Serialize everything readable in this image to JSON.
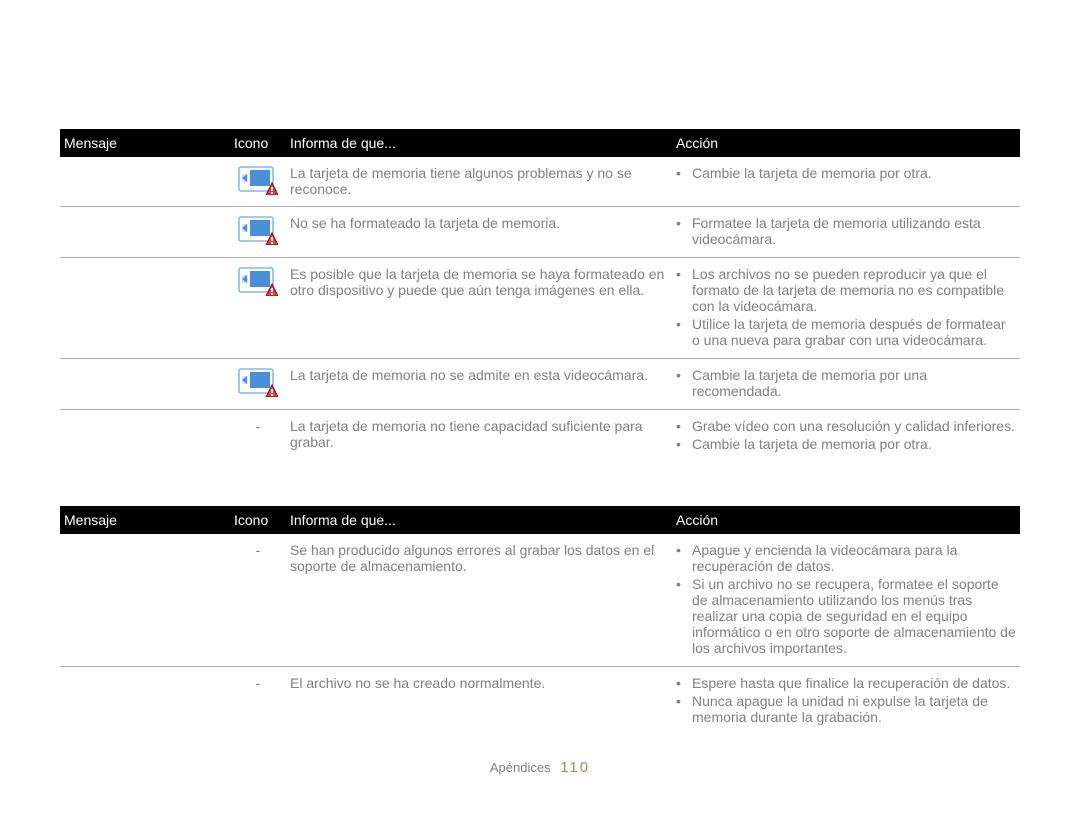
{
  "page_title": "",
  "section1": {
    "label": "",
    "headers": {
      "message": "Mensaje",
      "icon": "Icono",
      "informa": "Informa de que...",
      "action": "Acción"
    },
    "icon_colors": {
      "body": "#4a90d9",
      "screen": "#cfe5ff",
      "triangle_border": "#a00000",
      "triangle_fill": "#e04040",
      "bang": "#ffffff"
    },
    "rows": [
      {
        "msg": "",
        "icon": "card",
        "desc": "La tarjeta de memoria tiene algunos problemas y no se reconoce.",
        "actions": [
          "Cambie la tarjeta de memoria por otra."
        ]
      },
      {
        "msg": "",
        "icon": "card",
        "desc": "No se ha formateado la tarjeta de memoria.",
        "actions": [
          "Formatee la tarjeta de memoria utilizando esta videocámara."
        ]
      },
      {
        "msg": "",
        "icon": "card",
        "desc": "Es posible que la tarjeta de memoria se haya formateado en otro dispositivo y puede que aún tenga imágenes en ella.",
        "actions": [
          "Los archivos no se pueden reproducir ya que el formato de la tarjeta de memoria no es compatible con la videocámara.",
          "Utilice la tarjeta de memoria después de formatear o una nueva para grabar con una videocámara."
        ]
      },
      {
        "msg": "",
        "icon": "card",
        "desc": "La tarjeta de memoria no se admite en esta videocámara.",
        "actions": [
          "Cambie la tarjeta de memoria por una recomendada."
        ]
      },
      {
        "msg": "",
        "icon": "-",
        "desc": "La tarjeta de memoria no tiene capacidad suficiente para grabar.",
        "actions": [
          "Grabe vídeo con una resolución y calidad inferiores.",
          "Cambie la tarjeta de memoria por otra."
        ]
      }
    ]
  },
  "section2": {
    "headers": {
      "message": "Mensaje",
      "icon": "Icono",
      "informa": "Informa de que...",
      "action": "Acción"
    },
    "rows": [
      {
        "msg": "",
        "icon": "-",
        "desc": "Se han producido algunos errores al grabar los datos en el soporte de almacenamiento.",
        "actions": [
          "Apague y encienda la videocámara para la recuperación de datos.",
          "Si un archivo no se recupera, formatee el soporte de almacenamiento utilizando los menús tras realizar una copia de seguridad en el equipo informático o en otro soporte de almacenamiento de los archivos importantes."
        ]
      },
      {
        "msg": "",
        "icon": "-",
        "desc": "El archivo no se ha creado normalmente.",
        "actions": [
          "Espere hasta que finalice la recuperación de datos.",
          "Nunca apague la unidad ni expulse la tarjeta de memoria durante la grabación."
        ]
      }
    ]
  },
  "footer": {
    "label": "Apéndices",
    "page": "110"
  }
}
